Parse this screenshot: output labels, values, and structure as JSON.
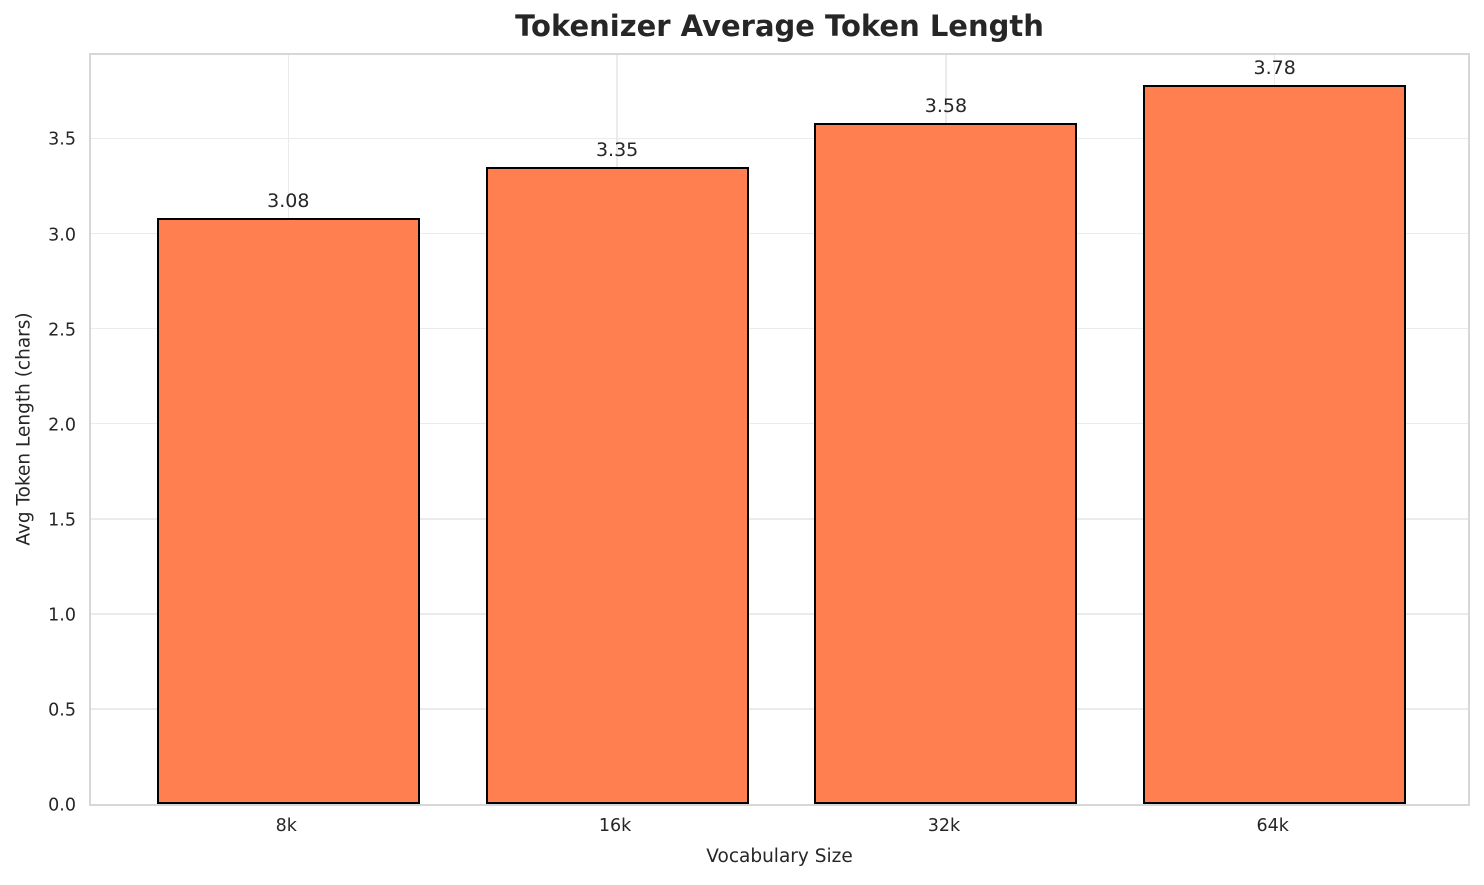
{
  "chart_data": {
    "type": "bar",
    "title": "Tokenizer Average Token Length",
    "xlabel": "Vocabulary Size",
    "ylabel": "Avg Token Length (chars)",
    "categories": [
      "8k",
      "16k",
      "32k",
      "64k"
    ],
    "values": [
      3.08,
      3.35,
      3.58,
      3.78
    ],
    "value_labels": [
      "3.08",
      "3.35",
      "3.58",
      "3.78"
    ],
    "yticks": [
      0.0,
      0.5,
      1.0,
      1.5,
      2.0,
      2.5,
      3.0,
      3.5
    ],
    "ytick_labels": [
      "0.0",
      "0.5",
      "1.0",
      "1.5",
      "2.0",
      "2.5",
      "3.0",
      "3.5"
    ],
    "ylim": [
      0,
      3.96
    ],
    "bar_width_fraction": 0.8,
    "grid": true,
    "legend": false,
    "colors": {
      "bar": "#FF7F50",
      "bar_edge": "#000000",
      "grid": "#EBEBEB",
      "spine": "#D7D7D7",
      "text": "#262626",
      "background": "#FFFFFF"
    }
  }
}
